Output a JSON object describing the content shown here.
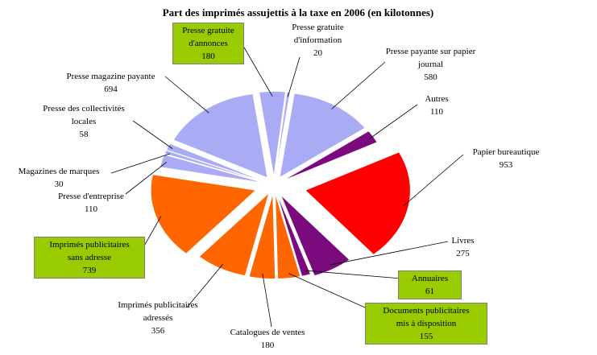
{
  "chart_data": {
    "type": "pie",
    "title": "Part des imprimés assujettis à la taxe en 2006 (en kilotonnes)",
    "slices": [
      {
        "label": "Presse payante sur papier journal",
        "value": 580,
        "color": "#a9abf4",
        "highlight": false
      },
      {
        "label": "Autres",
        "value": 110,
        "color": "#7b0a7f",
        "highlight": false
      },
      {
        "label": "Papier bureautique",
        "value": 953,
        "color": "#ff0000",
        "highlight": false
      },
      {
        "label": "Livres",
        "value": 275,
        "color": "#7b0a7f",
        "highlight": false
      },
      {
        "label": "Annuaires",
        "value": 61,
        "color": "#7b0a7f",
        "highlight": true
      },
      {
        "label": "Documents publicitaires mis à disposition",
        "value": 155,
        "color": "#ff6600",
        "highlight": true
      },
      {
        "label": "Catalogues de ventes",
        "value": 180,
        "color": "#ff6600",
        "highlight": false
      },
      {
        "label": "Imprimés publicitaires adressés",
        "value": 356,
        "color": "#ff6600",
        "highlight": false
      },
      {
        "label": "Imprimés publicitaires sans adresse",
        "value": 739,
        "color": "#ff6600",
        "highlight": true
      },
      {
        "label": "Presse d'entreprise",
        "value": 110,
        "color": "#a9abf4",
        "highlight": false
      },
      {
        "label": "Magazines de marques",
        "value": 30,
        "color": "#a9abf4",
        "highlight": false
      },
      {
        "label": "Presse des collectivités locales",
        "value": 58,
        "color": "#a9abf4",
        "highlight": false
      },
      {
        "label": "Presse magazine payante",
        "value": 694,
        "color": "#a9abf4",
        "highlight": false
      },
      {
        "label": "Presse gratuite d'annonces",
        "value": 180,
        "color": "#a9abf4",
        "highlight": true
      },
      {
        "label": "Presse gratuite d'information",
        "value": 20,
        "color": "#a9abf4",
        "highlight": false
      }
    ],
    "legend": "none"
  },
  "labels": [
    {
      "id": "presse-payante-journal",
      "lines": [
        "Presse payante sur papier",
        "journal"
      ],
      "value": "580"
    },
    {
      "id": "autres",
      "lines": [
        "Autres"
      ],
      "value": "110"
    },
    {
      "id": "papier-bureautique",
      "lines": [
        "Papier bureautique"
      ],
      "value": "953"
    },
    {
      "id": "livres",
      "lines": [
        "Livres"
      ],
      "value": "275"
    },
    {
      "id": "annuaires",
      "lines": [
        "Annuaires"
      ],
      "value": "61"
    },
    {
      "id": "documents-publicitaires",
      "lines": [
        "Documents publicitaires",
        "mis à disposition"
      ],
      "value": "155"
    },
    {
      "id": "catalogues-ventes",
      "lines": [
        "Catalogues de ventes"
      ],
      "value": "180"
    },
    {
      "id": "imprimes-adresses",
      "lines": [
        "Imprimés publicitaires",
        "adressés"
      ],
      "value": "356"
    },
    {
      "id": "imprimes-sans-adresse",
      "lines": [
        "Imprimés publicitaires",
        "sans adresse"
      ],
      "value": "739"
    },
    {
      "id": "presse-entreprise",
      "lines": [
        "Presse d'entreprise"
      ],
      "value": "110"
    },
    {
      "id": "magazines-marques",
      "lines": [
        "Magazines de marques"
      ],
      "value": "30"
    },
    {
      "id": "presse-collectivites",
      "lines": [
        "Presse des collectivités",
        "locales"
      ],
      "value": "58"
    },
    {
      "id": "presse-magazine-payante",
      "lines": [
        "Presse magazine payante"
      ],
      "value": "694"
    },
    {
      "id": "presse-gratuite-annonces",
      "lines": [
        "Presse gratuite",
        "d'annonces"
      ],
      "value": "180"
    },
    {
      "id": "presse-gratuite-information",
      "lines": [
        "Presse gratuite",
        "d'information"
      ],
      "value": "20"
    }
  ]
}
